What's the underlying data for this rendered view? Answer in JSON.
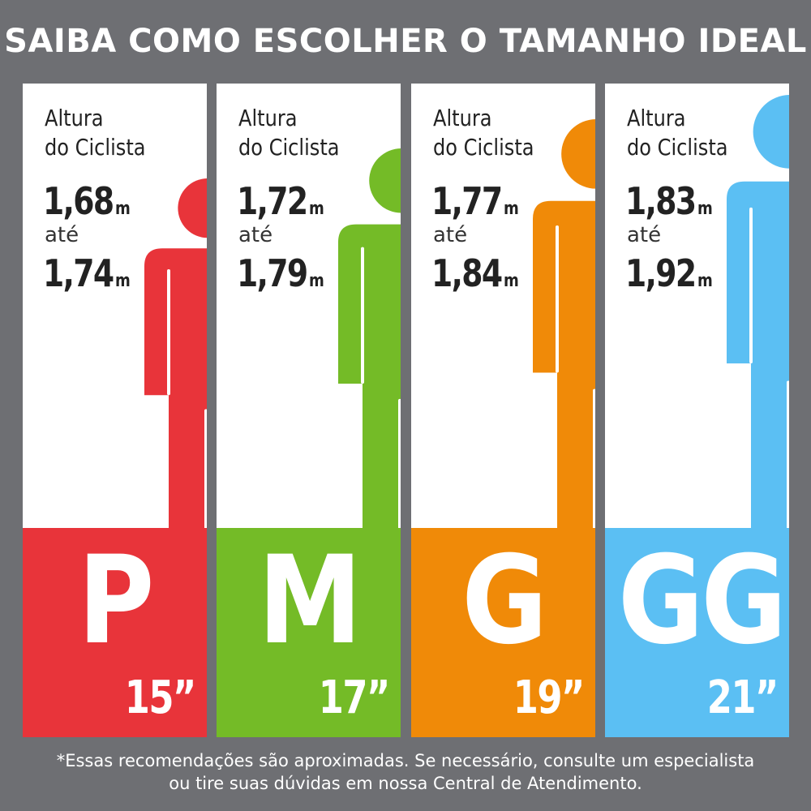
{
  "title": "SAIBA COMO ESCOLHER O TAMANHO IDEAL",
  "cards": [
    {
      "altura_line1": "Altura",
      "altura_line2": "do Ciclista",
      "from": "1,68",
      "to": "1,74",
      "unit": "m",
      "ate": "até",
      "size": "P",
      "frame": "15”",
      "color": "#e8343a"
    },
    {
      "altura_line1": "Altura",
      "altura_line2": "do Ciclista",
      "from": "1,72",
      "to": "1,79",
      "unit": "m",
      "ate": "até",
      "size": "M",
      "frame": "17”",
      "color": "#74bb27"
    },
    {
      "altura_line1": "Altura",
      "altura_line2": "do Ciclista",
      "from": "1,77",
      "to": "1,84",
      "unit": "m",
      "ate": "até",
      "size": "G",
      "frame": "19”",
      "color": "#f08a08"
    },
    {
      "altura_line1": "Altura",
      "altura_line2": "do Ciclista",
      "from": "1,83",
      "to": "1,92",
      "unit": "m",
      "ate": "até",
      "size": "GG",
      "frame": "21”",
      "color": "#5bbff3"
    }
  ],
  "footnote_line1": "*Essas recomendações são aproximadas. Se necessário, consulte um especialista",
  "footnote_line2": "ou tire suas dúvidas em nossa Central de Atendimento."
}
